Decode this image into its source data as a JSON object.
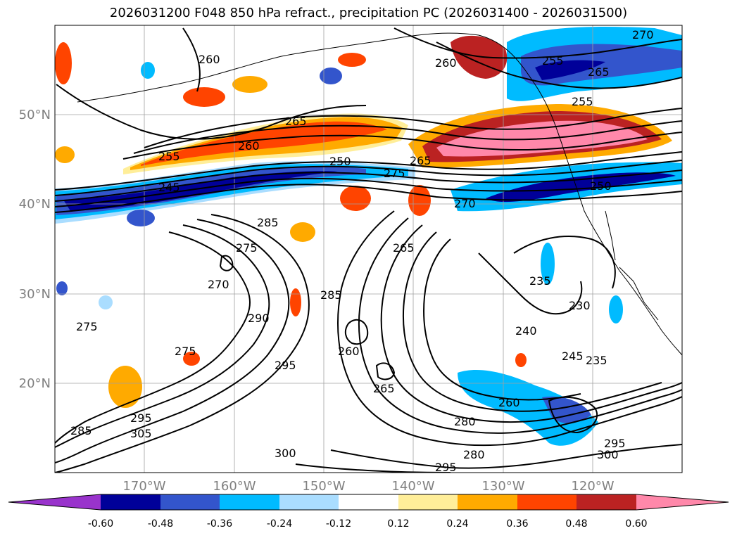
{
  "title": "2026031200 F048 850 hPa refract., precipitation PC (2026031400 - 2026031500)",
  "map": {
    "lon_labels": [
      "170°W",
      "160°W",
      "150°W",
      "140°W",
      "130°W",
      "120°W"
    ],
    "lat_labels": [
      "50°N",
      "40°N",
      "30°N",
      "20°N"
    ],
    "contour_labels": [
      "265",
      "260",
      "255",
      "250",
      "275",
      "265",
      "270",
      "250",
      "245",
      "285",
      "275",
      "270",
      "265",
      "285",
      "260",
      "265",
      "290",
      "295",
      "275",
      "295",
      "305",
      "285",
      "300",
      "280",
      "280",
      "295",
      "300",
      "295",
      "260",
      "235",
      "230",
      "240",
      "245",
      "235",
      "260",
      "265",
      "270",
      "255",
      "275",
      "260",
      "255"
    ]
  },
  "colorbar": {
    "colors": [
      "#9933cc",
      "#000099",
      "#3355cc",
      "#00bbff",
      "#aaddff",
      "#ffffff",
      "#ffee99",
      "#ffaa00",
      "#ff4400",
      "#bb2222",
      "#ff88aa",
      "#ff88aa"
    ],
    "labels": [
      "-0.60",
      "-0.48",
      "-0.36",
      "-0.24",
      "-0.12",
      "0.12",
      "0.24",
      "0.36",
      "0.48",
      "0.60"
    ]
  }
}
